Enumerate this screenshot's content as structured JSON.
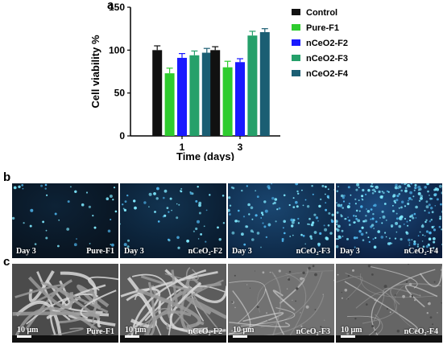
{
  "panel_labels": {
    "a": "a",
    "b": "b",
    "c": "c"
  },
  "chart_data": {
    "type": "bar",
    "xlabel": "Time (days)",
    "ylabel": "Cell viability %",
    "categories": [
      "1",
      "3"
    ],
    "ylim": [
      0,
      150
    ],
    "yticks": [
      0,
      50,
      100,
      150
    ],
    "legend_position": "right",
    "series": [
      {
        "name": "Control",
        "color": "#111111",
        "values": [
          100,
          100
        ],
        "errors": [
          5,
          4
        ]
      },
      {
        "name": "Pure-F1",
        "color": "#2ecc2e",
        "values": [
          73,
          80
        ],
        "errors": [
          6,
          7
        ]
      },
      {
        "name": "nCeO2-F2",
        "color": "#1a1aff",
        "values": [
          91,
          86
        ],
        "errors": [
          5,
          4
        ]
      },
      {
        "name": "nCeO2-F3",
        "color": "#25a06a",
        "values": [
          94,
          117
        ],
        "errors": [
          5,
          5
        ]
      },
      {
        "name": "nCeO2-F4",
        "color": "#1b5e73",
        "values": [
          97,
          121
        ],
        "errors": [
          5,
          4
        ]
      }
    ]
  },
  "fluorescence_row": [
    {
      "day": "Day 3",
      "name": "Pure-F1"
    },
    {
      "day": "Day 3",
      "name": "nCeO₂-F2"
    },
    {
      "day": "Day 3",
      "name": "nCeO₂-F3"
    },
    {
      "day": "Day 3",
      "name": "nCeO₂-F4"
    }
  ],
  "sem_row": [
    {
      "scale": "10 μm",
      "name": "Pure-F1"
    },
    {
      "scale": "10 μm",
      "name": "nCeO₂-F2"
    },
    {
      "scale": "10 μm",
      "name": "nCeO₂-F3"
    },
    {
      "scale": "10 μm",
      "name": "nCeO₂-F4"
    }
  ]
}
